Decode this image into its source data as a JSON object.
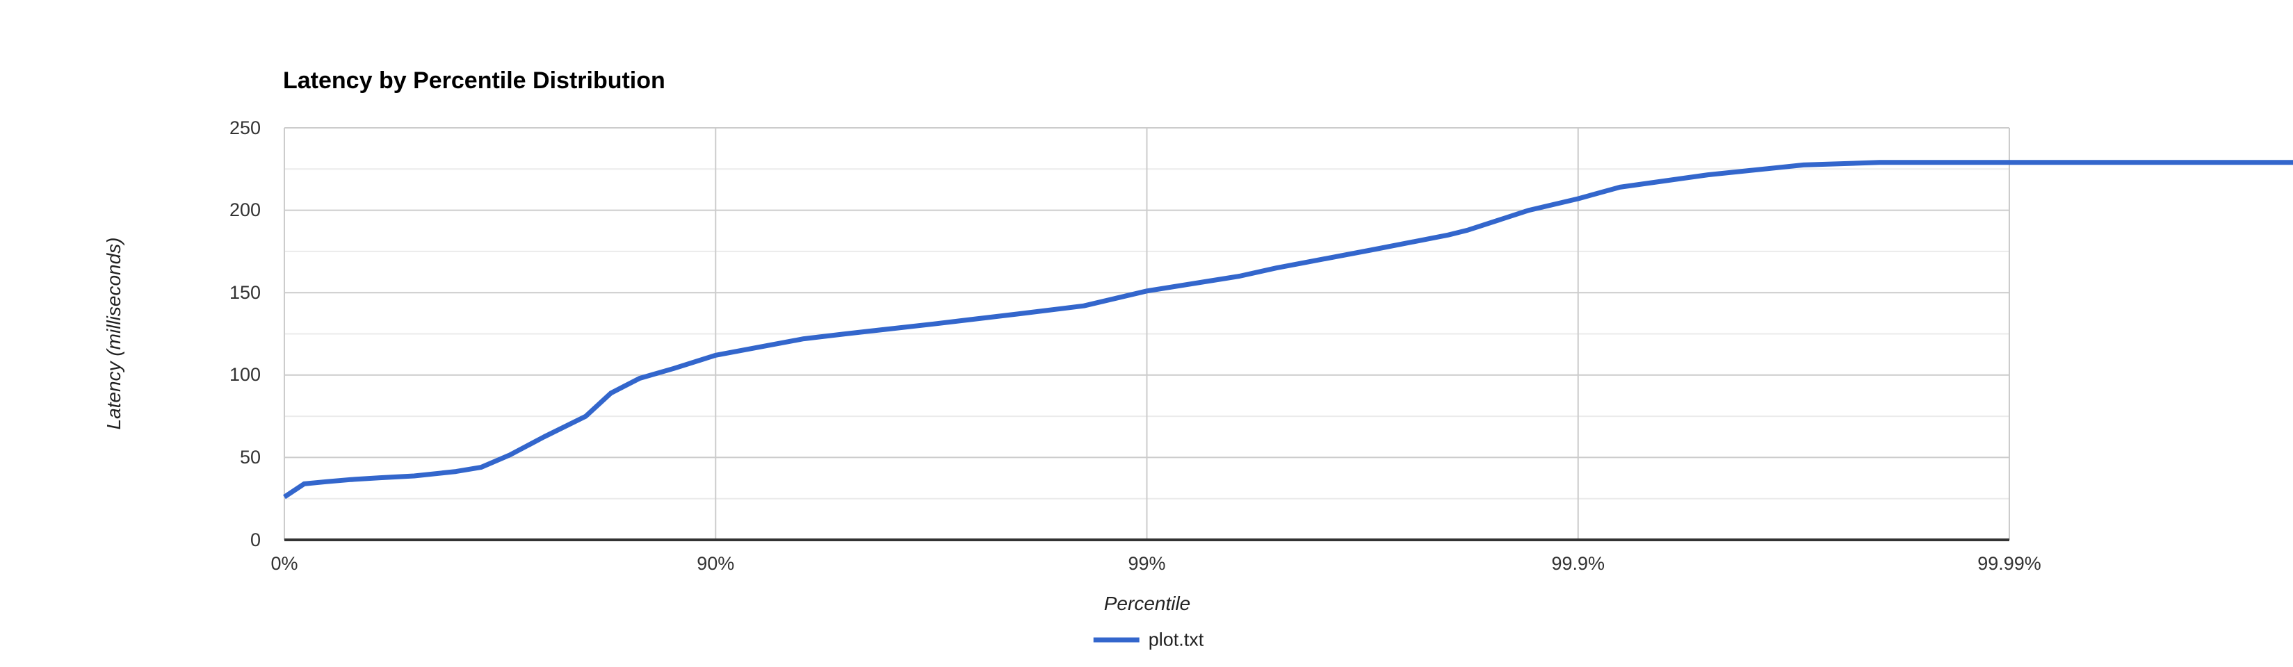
{
  "chart": {
    "series_color": "#3366cc",
    "grid_major_color": "#cccccc",
    "grid_minor_color": "#ebebeb",
    "baseline_color": "#333333",
    "tick_label_color": "#333333",
    "background_color": "#ffffff"
  },
  "chart_data": {
    "type": "line",
    "title": "Latency by Percentile Distribution",
    "xlabel": "Percentile",
    "ylabel": "Latency (milliseconds)",
    "x_axis": {
      "scale": "log-percentile",
      "ticks": [
        {
          "label": "0%",
          "percentile": 0
        },
        {
          "label": "90%",
          "percentile": 90
        },
        {
          "label": "99%",
          "percentile": 99
        },
        {
          "label": "99.9%",
          "percentile": 99.9
        },
        {
          "label": "99.99%",
          "percentile": 99.99
        }
      ],
      "plot_decades": 4,
      "line_extends_past_plot_area": true
    },
    "y_axis": {
      "min": 0,
      "max": 250,
      "major_step": 50,
      "minor_step": 25,
      "tick_labels": [
        "0",
        "50",
        "100",
        "150",
        "200",
        "250"
      ]
    },
    "grid": "on",
    "legend": {
      "position": "bottom",
      "entries": [
        {
          "label": "plot.txt",
          "color": "#3366cc"
        }
      ]
    },
    "series": [
      {
        "name": "plot.txt",
        "points": [
          [
            0,
            26
          ],
          [
            10,
            34
          ],
          [
            20,
            35.3
          ],
          [
            30,
            36.6
          ],
          [
            40,
            37.7
          ],
          [
            50,
            38.8
          ],
          [
            60,
            41.5
          ],
          [
            65,
            44
          ],
          [
            70,
            51.5
          ],
          [
            75,
            62.5
          ],
          [
            80,
            75
          ],
          [
            82.5,
            89
          ],
          [
            85,
            98
          ],
          [
            87.5,
            104
          ],
          [
            90,
            112
          ],
          [
            93.75,
            122
          ],
          [
            95,
            125
          ],
          [
            96.875,
            131
          ],
          [
            98,
            137
          ],
          [
            98.6,
            142
          ],
          [
            99,
            151
          ],
          [
            99.39,
            160
          ],
          [
            99.5,
            165
          ],
          [
            99.7,
            176
          ],
          [
            99.8,
            185
          ],
          [
            99.82,
            188
          ],
          [
            99.87,
            200
          ],
          [
            99.9,
            207
          ],
          [
            99.92,
            214
          ],
          [
            99.95,
            221.5
          ],
          [
            99.97,
            227.5
          ],
          [
            99.98,
            229
          ],
          [
            99.99,
            229
          ],
          [
            99.998,
            229
          ]
        ]
      }
    ]
  }
}
